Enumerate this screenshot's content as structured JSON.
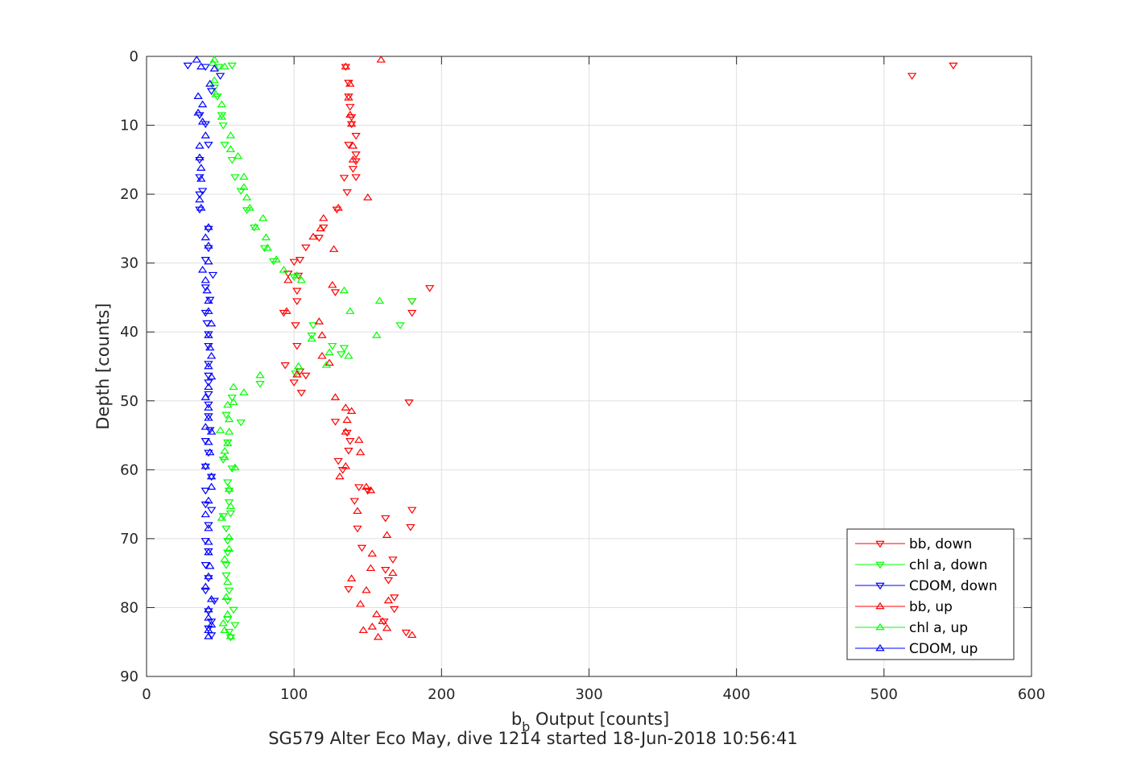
{
  "chart_data": {
    "type": "scatter",
    "title": "",
    "xlabel_main": "b",
    "xlabel_sub": "b",
    "xlabel_rest": " Output [counts]",
    "ylabel": "Depth [counts]",
    "caption": "SG579 Alter Eco May, dive 1214 started 18-Jun-2018 10:56:41",
    "xlim": [
      0,
      600
    ],
    "ylim": [
      0,
      90
    ],
    "y_reversed": true,
    "grid": true,
    "x_ticks": [
      0,
      100,
      200,
      300,
      400,
      500,
      600
    ],
    "y_ticks": [
      0,
      10,
      20,
      30,
      40,
      50,
      60,
      70,
      80,
      90
    ],
    "legend_position": "bottom-right",
    "series": [
      {
        "name": "bb, down",
        "marker": "triangle-down",
        "color": "#ff0000",
        "points": [
          [
            547,
            1.3
          ],
          [
            519,
            2.8
          ],
          [
            135,
            1.5
          ],
          [
            137,
            3.8
          ],
          [
            137,
            5.8
          ],
          [
            138,
            7.3
          ],
          [
            139,
            8.8
          ],
          [
            139,
            9.8
          ],
          [
            142,
            11.5
          ],
          [
            137,
            12.8
          ],
          [
            142,
            14.2
          ],
          [
            142,
            15.2
          ],
          [
            140,
            16.3
          ],
          [
            142,
            17.5
          ],
          [
            134,
            17.6
          ],
          [
            136,
            19.7
          ],
          [
            129,
            22.2
          ],
          [
            120,
            24.8
          ],
          [
            117,
            26.3
          ],
          [
            108,
            27.7
          ],
          [
            104,
            29.5
          ],
          [
            100,
            29.8
          ],
          [
            96,
            31.5
          ],
          [
            103,
            31.8
          ],
          [
            102,
            34.0
          ],
          [
            128,
            34.2
          ],
          [
            192,
            33.6
          ],
          [
            102,
            35.5
          ],
          [
            180,
            35.5
          ],
          [
            93,
            37.2
          ],
          [
            180,
            37.2
          ],
          [
            101,
            39.0
          ],
          [
            102,
            42.0
          ],
          [
            94,
            44.8
          ],
          [
            104,
            45.7
          ],
          [
            108,
            46.3
          ],
          [
            100,
            47.3
          ],
          [
            105,
            48.8
          ],
          [
            178,
            50.2
          ],
          [
            128,
            53.0
          ],
          [
            136,
            54.6
          ],
          [
            138,
            55.8
          ],
          [
            137,
            57.2
          ],
          [
            130,
            58.7
          ],
          [
            133,
            60.0
          ],
          [
            144,
            62.5
          ],
          [
            150,
            63.0
          ],
          [
            141,
            64.5
          ],
          [
            180,
            65.8
          ],
          [
            162,
            67.0
          ],
          [
            143,
            68.5
          ],
          [
            179,
            68.3
          ],
          [
            146,
            71.3
          ],
          [
            167,
            73.0
          ],
          [
            162,
            74.5
          ],
          [
            164,
            76.0
          ],
          [
            137,
            77.3
          ],
          [
            168,
            78.5
          ],
          [
            168,
            80.2
          ],
          [
            161,
            82.0
          ],
          [
            176,
            83.6
          ]
        ]
      },
      {
        "name": "chl a, down",
        "marker": "triangle-down",
        "color": "#00ff00",
        "points": [
          [
            58,
            1.3
          ],
          [
            49,
            1.5
          ],
          [
            46,
            4.5
          ],
          [
            48,
            5.8
          ],
          [
            51,
            8.5
          ],
          [
            52,
            10.0
          ],
          [
            53,
            12.8
          ],
          [
            58,
            15.0
          ],
          [
            60,
            17.5
          ],
          [
            64,
            19.5
          ],
          [
            68,
            22.3
          ],
          [
            73,
            24.8
          ],
          [
            80,
            27.8
          ],
          [
            86,
            29.7
          ],
          [
            100,
            32.0
          ],
          [
            180,
            35.5
          ],
          [
            172,
            39.0
          ],
          [
            113,
            39.0
          ],
          [
            112,
            40.5
          ],
          [
            126,
            42.0
          ],
          [
            134,
            42.3
          ],
          [
            132,
            43.2
          ],
          [
            101,
            46.0
          ],
          [
            77,
            47.5
          ],
          [
            58,
            49.5
          ],
          [
            54,
            52.0
          ],
          [
            64,
            53.1
          ],
          [
            55,
            56.0
          ],
          [
            52,
            58.5
          ],
          [
            58,
            59.8
          ],
          [
            55,
            61.8
          ],
          [
            56,
            63.0
          ],
          [
            56,
            64.7
          ],
          [
            57,
            66.3
          ],
          [
            52,
            66.7
          ],
          [
            54,
            68.5
          ],
          [
            55,
            70.3
          ],
          [
            55,
            72.0
          ],
          [
            54,
            73.8
          ],
          [
            54,
            75.3
          ],
          [
            56,
            77.5
          ],
          [
            55,
            79.0
          ],
          [
            59,
            80.3
          ],
          [
            55,
            81.7
          ],
          [
            60,
            82.5
          ],
          [
            56,
            83.5
          ],
          [
            57,
            84.3
          ]
        ]
      },
      {
        "name": "CDOM, down",
        "marker": "triangle-down",
        "color": "#0000ff",
        "points": [
          [
            28,
            1.3
          ],
          [
            40,
            1.5
          ],
          [
            50,
            2.8
          ],
          [
            44,
            5.0
          ],
          [
            36,
            8.5
          ],
          [
            40,
            9.8
          ],
          [
            42,
            12.8
          ],
          [
            36,
            15.0
          ],
          [
            36,
            17.5
          ],
          [
            38,
            19.5
          ],
          [
            36,
            20.0
          ],
          [
            36,
            22.2
          ],
          [
            42,
            25.0
          ],
          [
            42,
            27.8
          ],
          [
            40,
            29.5
          ],
          [
            45,
            31.7
          ],
          [
            40,
            33.5
          ],
          [
            43,
            35.3
          ],
          [
            40,
            37.2
          ],
          [
            41,
            38.7
          ],
          [
            42,
            40.3
          ],
          [
            42,
            42.0
          ],
          [
            42,
            44.6
          ],
          [
            42,
            46.3
          ],
          [
            42,
            47.3
          ],
          [
            42,
            49.0
          ],
          [
            42,
            50.5
          ],
          [
            42,
            52.2
          ],
          [
            43,
            54.2
          ],
          [
            40,
            55.8
          ],
          [
            42,
            57.5
          ],
          [
            40,
            59.5
          ],
          [
            44,
            61.0
          ],
          [
            40,
            63.0
          ],
          [
            40,
            65.0
          ],
          [
            44,
            65.8
          ],
          [
            42,
            68.0
          ],
          [
            40,
            70.3
          ],
          [
            42,
            71.8
          ],
          [
            40,
            73.8
          ],
          [
            42,
            75.7
          ],
          [
            40,
            77.5
          ],
          [
            46,
            79.0
          ],
          [
            42,
            80.5
          ],
          [
            44,
            82.0
          ],
          [
            42,
            83.0
          ],
          [
            44,
            84.0
          ]
        ]
      },
      {
        "name": "bb, up",
        "marker": "triangle-up",
        "color": "#ff0000",
        "points": [
          [
            159,
            0.5
          ],
          [
            135,
            1.5
          ],
          [
            138,
            4.0
          ],
          [
            137,
            6.0
          ],
          [
            138,
            8.5
          ],
          [
            139,
            9.8
          ],
          [
            140,
            13.0
          ],
          [
            140,
            15.0
          ],
          [
            150,
            20.5
          ],
          [
            130,
            22.0
          ],
          [
            120,
            23.5
          ],
          [
            118,
            25.0
          ],
          [
            127,
            28.0
          ],
          [
            113,
            26.2
          ],
          [
            96,
            32.5
          ],
          [
            126,
            33.2
          ],
          [
            95,
            37.0
          ],
          [
            117,
            38.5
          ],
          [
            119,
            40.5
          ],
          [
            119,
            43.5
          ],
          [
            124,
            44.5
          ],
          [
            102,
            46.2
          ],
          [
            128,
            49.5
          ],
          [
            135,
            51.0
          ],
          [
            139,
            51.5
          ],
          [
            136,
            52.8
          ],
          [
            135,
            54.5
          ],
          [
            144,
            55.7
          ],
          [
            145,
            57.5
          ],
          [
            135,
            59.5
          ],
          [
            131,
            61.0
          ],
          [
            149,
            62.5
          ],
          [
            152,
            63.0
          ],
          [
            143,
            66.0
          ],
          [
            163,
            69.5
          ],
          [
            153,
            72.2
          ],
          [
            152,
            74.3
          ],
          [
            167,
            75.0
          ],
          [
            139,
            75.8
          ],
          [
            149,
            77.5
          ],
          [
            164,
            79.0
          ],
          [
            145,
            79.5
          ],
          [
            156,
            81.0
          ],
          [
            160,
            82.0
          ],
          [
            153,
            82.8
          ],
          [
            163,
            83.0
          ],
          [
            147,
            83.3
          ],
          [
            157,
            84.3
          ],
          [
            180,
            84.0
          ]
        ]
      },
      {
        "name": "chl a, up",
        "marker": "triangle-up",
        "color": "#00ff00",
        "points": [
          [
            46,
            0.5
          ],
          [
            45,
            1.0
          ],
          [
            53,
            1.5
          ],
          [
            46,
            3.5
          ],
          [
            47,
            5.5
          ],
          [
            51,
            7.0
          ],
          [
            51,
            8.8
          ],
          [
            57,
            11.5
          ],
          [
            57,
            13.5
          ],
          [
            62,
            14.5
          ],
          [
            66,
            17.5
          ],
          [
            66,
            19.0
          ],
          [
            68,
            20.5
          ],
          [
            70,
            22.0
          ],
          [
            79,
            23.5
          ],
          [
            74,
            24.8
          ],
          [
            81,
            26.3
          ],
          [
            82,
            27.8
          ],
          [
            88,
            29.5
          ],
          [
            93,
            31.0
          ],
          [
            102,
            31.8
          ],
          [
            105,
            32.5
          ],
          [
            134,
            34.0
          ],
          [
            158,
            35.5
          ],
          [
            138,
            37.0
          ],
          [
            156,
            40.5
          ],
          [
            112,
            41.0
          ],
          [
            124,
            43.0
          ],
          [
            137,
            43.5
          ],
          [
            122,
            44.8
          ],
          [
            103,
            45.0
          ],
          [
            77,
            46.3
          ],
          [
            59,
            48.0
          ],
          [
            66,
            48.8
          ],
          [
            59,
            50.2
          ],
          [
            55,
            50.6
          ],
          [
            56,
            52.7
          ],
          [
            50,
            54.3
          ],
          [
            56,
            54.5
          ],
          [
            55,
            56.2
          ],
          [
            53,
            57.3
          ],
          [
            53,
            58.2
          ],
          [
            60,
            59.7
          ],
          [
            56,
            62.8
          ],
          [
            57,
            65.3
          ],
          [
            51,
            67.0
          ],
          [
            56,
            69.8
          ],
          [
            56,
            71.5
          ],
          [
            53,
            73.0
          ],
          [
            55,
            76.3
          ],
          [
            54,
            78.5
          ],
          [
            55,
            81.0
          ],
          [
            52,
            82.3
          ],
          [
            53,
            83.3
          ],
          [
            57,
            84.2
          ]
        ]
      },
      {
        "name": "CDOM, up",
        "marker": "triangle-up",
        "color": "#0000ff",
        "points": [
          [
            34,
            0.5
          ],
          [
            37,
            1.5
          ],
          [
            46,
            1.8
          ],
          [
            43,
            4.0
          ],
          [
            35,
            5.8
          ],
          [
            38,
            7.0
          ],
          [
            35,
            8.2
          ],
          [
            38,
            9.5
          ],
          [
            40,
            11.5
          ],
          [
            36,
            13.0
          ],
          [
            36,
            14.7
          ],
          [
            37,
            16.2
          ],
          [
            37,
            17.8
          ],
          [
            36,
            20.8
          ],
          [
            37,
            22.0
          ],
          [
            42,
            24.8
          ],
          [
            40,
            26.3
          ],
          [
            42,
            27.5
          ],
          [
            42,
            29.8
          ],
          [
            38,
            31.0
          ],
          [
            40,
            32.5
          ],
          [
            41,
            34.0
          ],
          [
            42,
            35.5
          ],
          [
            42,
            37.0
          ],
          [
            44,
            38.8
          ],
          [
            42,
            40.5
          ],
          [
            43,
            42.3
          ],
          [
            44,
            43.5
          ],
          [
            42,
            45.0
          ],
          [
            44,
            46.5
          ],
          [
            42,
            48.0
          ],
          [
            40,
            49.5
          ],
          [
            42,
            51.0
          ],
          [
            42,
            52.5
          ],
          [
            40,
            53.8
          ],
          [
            44,
            54.5
          ],
          [
            42,
            56.0
          ],
          [
            43,
            57.5
          ],
          [
            40,
            59.5
          ],
          [
            44,
            61.0
          ],
          [
            44,
            62.5
          ],
          [
            42,
            64.5
          ],
          [
            40,
            66.5
          ],
          [
            42,
            68.5
          ],
          [
            42,
            70.5
          ],
          [
            42,
            72.0
          ],
          [
            43,
            74.0
          ],
          [
            42,
            75.5
          ],
          [
            40,
            77.0
          ],
          [
            44,
            78.8
          ],
          [
            42,
            80.3
          ],
          [
            42,
            81.5
          ],
          [
            44,
            82.5
          ],
          [
            42,
            83.3
          ],
          [
            42,
            84.2
          ]
        ]
      }
    ]
  }
}
